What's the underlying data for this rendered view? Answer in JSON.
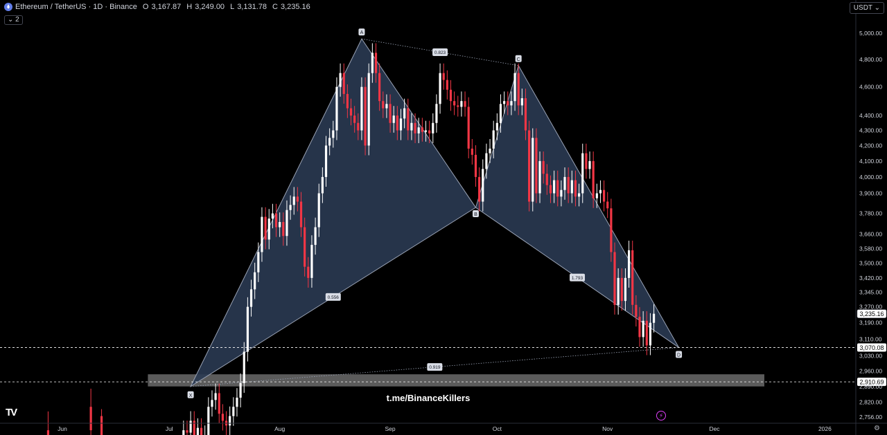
{
  "header": {
    "symbol_icon": "ethereum-logo-icon",
    "title": "Ethereum / TetherUS · 1D · Binance",
    "open_label": "O",
    "open": "3,167.87",
    "high_label": "H",
    "high": "3,249.00",
    "low_label": "L",
    "low": "3,131.78",
    "close_label": "C",
    "close": "3,235.16",
    "indicators_toggle": "⌄ 2",
    "currency": "USDT ⌄"
  },
  "watermark": "t.me/BinanceKillers",
  "logo_text": "TV",
  "colors": {
    "up": "#ffffff",
    "down": "#f23645",
    "pattern_fill": "#2a3a52",
    "pattern_line": "#9aa3b5",
    "zone": "#6b6b6b",
    "price_label_bg": "#ffffff",
    "text": "#d1d4dc"
  },
  "chart_data": {
    "type": "candlestick",
    "title": "Ethereum / TetherUS · 1D · Binance",
    "y_scale": "log",
    "y_range": [
      2730,
      5100
    ],
    "y_ticks": [
      "5,000.00",
      "4,800.00",
      "4,600.00",
      "4,400.00",
      "4,300.00",
      "4,200.00",
      "4,100.00",
      "4,000.00",
      "3,900.00",
      "3,780.00",
      "3,660.00",
      "3,580.00",
      "3,500.00",
      "3,420.00",
      "3,345.00",
      "3,270.00",
      "3,190.00",
      "3,110.00",
      "3,030.00",
      "2,960.00",
      "2,890.00",
      "2,820.00",
      "2,756.00"
    ],
    "x_ticks": [
      {
        "label": "Jun",
        "date": "2025-06-01"
      },
      {
        "label": "Jul",
        "date": "2025-07-01"
      },
      {
        "label": "Aug",
        "date": "2025-08-01"
      },
      {
        "label": "Sep",
        "date": "2025-09-01"
      },
      {
        "label": "Oct",
        "date": "2025-10-01"
      },
      {
        "label": "Nov",
        "date": "2025-11-01"
      },
      {
        "label": "Dec",
        "date": "2025-12-01"
      },
      {
        "label": "2026",
        "date": "2026-01-01"
      }
    ],
    "x_range": [
      "2025-05-17",
      "2026-01-23"
    ],
    "candles_close": [
      2700,
      2690,
      2740,
      2680,
      2710,
      2650,
      2680,
      2800,
      2830,
      2860,
      2770,
      2740,
      2720,
      2760,
      2800,
      2840,
      2905,
      3050,
      3270,
      3360,
      3450,
      3560,
      3760,
      3630,
      3750,
      3780,
      3700,
      3730,
      3650,
      3800,
      3830,
      3880,
      3850,
      3700,
      3480,
      3420,
      3600,
      3700,
      3900,
      4000,
      4200,
      4250,
      4300,
      4600,
      4700,
      4550,
      4450,
      4400,
      4350,
      4300,
      4600,
      4200,
      4700,
      4850,
      4700,
      4500,
      4450,
      4480,
      4350,
      4400,
      4300,
      4380,
      4450,
      4300,
      4350,
      4280,
      4320,
      4290,
      4300,
      4280,
      4350,
      4480,
      4700,
      4650,
      4580,
      4500,
      4470,
      4460,
      4500,
      4460,
      4180,
      4140,
      4000,
      3850,
      4050,
      4150,
      4180,
      4300,
      4350,
      4480,
      4500,
      4470,
      4500,
      4700,
      4470,
      4520,
      4300,
      3850,
      4250,
      3900,
      4100,
      4020,
      3950,
      3900,
      3980,
      3880,
      3920,
      4000,
      3900,
      3980,
      3880,
      3900,
      4150,
      4050,
      4100,
      3870,
      3900,
      3920,
      3850,
      3810,
      3560,
      3280,
      3420,
      3300,
      3420,
      3570,
      3280,
      3220,
      3120,
      3200,
      3080,
      3190,
      3235
    ],
    "candles_start_date": "2025-07-05",
    "lows": [
      2730
    ],
    "candle_offsets_first": {
      "start": "2025-05-24",
      "count": 10
    },
    "pattern": {
      "name": "",
      "points": [
        {
          "label": "X",
          "date": "2025-07-07",
          "price": 2890
        },
        {
          "label": "A",
          "date": "2025-08-24",
          "price": 4956
        },
        {
          "label": "B",
          "date": "2025-09-25",
          "price": 3815
        },
        {
          "label": "C",
          "date": "2025-10-07",
          "price": 4755
        },
        {
          "label": "D",
          "date": "2025-11-21",
          "price": 3070
        }
      ],
      "ratios": [
        {
          "label": "0.556",
          "between": [
            "X",
            "B"
          ]
        },
        {
          "label": "0.823",
          "between": [
            "A",
            "C"
          ]
        },
        {
          "label": "1.793",
          "between": [
            "B",
            "D"
          ]
        },
        {
          "label": "0.919",
          "between": [
            "X",
            "D"
          ]
        }
      ]
    },
    "zone": {
      "low": 2890,
      "high": 2945,
      "from": "2025-06-25",
      "to": "2025-12-15"
    },
    "h_lines": [
      {
        "price": 3070.08,
        "label": "3,070.08"
      },
      {
        "price": 2910.69,
        "label": "2,910.69"
      }
    ],
    "last_price": {
      "price": 3235.16,
      "label": "3,235.16"
    }
  }
}
